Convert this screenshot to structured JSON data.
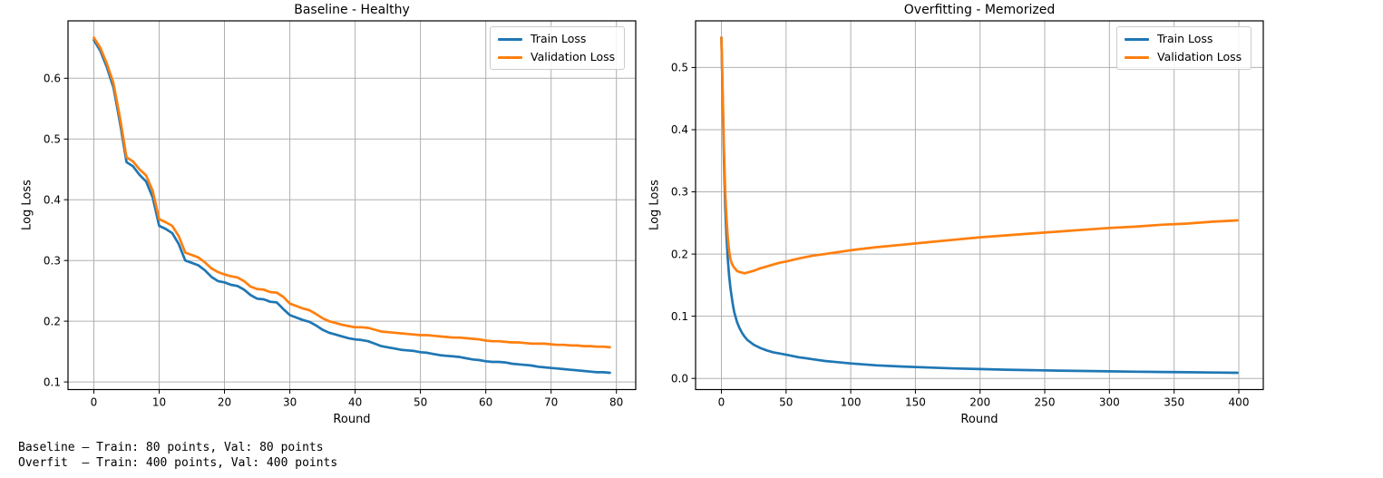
{
  "figure": {
    "background": "#ffffff",
    "footer_lines": [
      "Baseline – Train: 80 points, Val: 80 points",
      "Overfit  – Train: 400 points, Val: 400 points"
    ]
  },
  "colors": {
    "train": "#1f77b4",
    "validation": "#ff7f0e",
    "grid": "#b0b0b0",
    "spine": "#000000",
    "legend_border": "#cccccc",
    "text": "#000000"
  },
  "legend": {
    "entries": [
      {
        "label": "Train Loss",
        "color_key": "train"
      },
      {
        "label": "Validation Loss",
        "color_key": "validation"
      }
    ],
    "position": "upper right"
  },
  "chart_data": [
    {
      "id": "baseline",
      "type": "line",
      "title": "Baseline - Healthy",
      "xlabel": "Round",
      "ylabel": "Log Loss",
      "xlim": [
        -3.95,
        82.95
      ],
      "ylim": [
        0.0874,
        0.6946
      ],
      "xticks": [
        0,
        10,
        20,
        30,
        40,
        50,
        60,
        70,
        80
      ],
      "xtick_labels": [
        "0",
        "10",
        "20",
        "30",
        "40",
        "50",
        "60",
        "70",
        "80"
      ],
      "yticks": [
        0.1,
        0.2,
        0.3,
        0.4,
        0.5,
        0.6
      ],
      "ytick_labels": [
        "0.1",
        "0.2",
        "0.3",
        "0.4",
        "0.5",
        "0.6"
      ],
      "grid": true,
      "legend_position": "upper right",
      "series": [
        {
          "name": "Train Loss",
          "color": "#1f77b4",
          "x": [
            0,
            1,
            2,
            3,
            4,
            5,
            6,
            7,
            8,
            9,
            10,
            11,
            12,
            13,
            14,
            15,
            16,
            17,
            18,
            19,
            20,
            21,
            22,
            23,
            24,
            25,
            26,
            27,
            28,
            29,
            30,
            31,
            32,
            33,
            34,
            35,
            36,
            37,
            38,
            39,
            40,
            41,
            42,
            43,
            44,
            45,
            46,
            47,
            48,
            49,
            50,
            51,
            52,
            53,
            54,
            55,
            56,
            57,
            58,
            59,
            60,
            61,
            62,
            63,
            64,
            65,
            66,
            67,
            68,
            69,
            70,
            71,
            72,
            73,
            74,
            75,
            76,
            77,
            78,
            79
          ],
          "y": [
            0.663,
            0.645,
            0.618,
            0.585,
            0.527,
            0.462,
            0.455,
            0.441,
            0.43,
            0.404,
            0.357,
            0.352,
            0.345,
            0.327,
            0.3,
            0.296,
            0.292,
            0.284,
            0.273,
            0.266,
            0.264,
            0.26,
            0.258,
            0.252,
            0.243,
            0.237,
            0.236,
            0.232,
            0.231,
            0.22,
            0.21,
            0.206,
            0.202,
            0.199,
            0.193,
            0.186,
            0.181,
            0.178,
            0.175,
            0.172,
            0.17,
            0.169,
            0.167,
            0.163,
            0.159,
            0.157,
            0.155,
            0.153,
            0.152,
            0.151,
            0.149,
            0.148,
            0.146,
            0.144,
            0.143,
            0.142,
            0.141,
            0.139,
            0.137,
            0.136,
            0.134,
            0.133,
            0.133,
            0.132,
            0.13,
            0.129,
            0.128,
            0.127,
            0.125,
            0.124,
            0.123,
            0.122,
            0.121,
            0.12,
            0.119,
            0.118,
            0.117,
            0.116,
            0.116,
            0.115
          ]
        },
        {
          "name": "Validation Loss",
          "color": "#ff7f0e",
          "x": [
            0,
            1,
            2,
            3,
            4,
            5,
            6,
            7,
            8,
            9,
            10,
            11,
            12,
            13,
            14,
            15,
            16,
            17,
            18,
            19,
            20,
            21,
            22,
            23,
            24,
            25,
            26,
            27,
            28,
            29,
            30,
            31,
            32,
            33,
            34,
            35,
            36,
            37,
            38,
            39,
            40,
            41,
            42,
            43,
            44,
            45,
            46,
            47,
            48,
            49,
            50,
            51,
            52,
            53,
            54,
            55,
            56,
            57,
            58,
            59,
            60,
            61,
            62,
            63,
            64,
            65,
            66,
            67,
            68,
            69,
            70,
            71,
            72,
            73,
            74,
            75,
            76,
            77,
            78,
            79
          ],
          "y": [
            0.667,
            0.65,
            0.624,
            0.592,
            0.535,
            0.47,
            0.463,
            0.45,
            0.44,
            0.415,
            0.368,
            0.363,
            0.357,
            0.34,
            0.313,
            0.309,
            0.305,
            0.297,
            0.287,
            0.281,
            0.277,
            0.274,
            0.272,
            0.266,
            0.257,
            0.253,
            0.252,
            0.248,
            0.247,
            0.24,
            0.229,
            0.225,
            0.221,
            0.218,
            0.212,
            0.205,
            0.2,
            0.197,
            0.194,
            0.192,
            0.19,
            0.19,
            0.189,
            0.186,
            0.183,
            0.182,
            0.181,
            0.18,
            0.179,
            0.178,
            0.177,
            0.177,
            0.176,
            0.175,
            0.174,
            0.173,
            0.173,
            0.172,
            0.171,
            0.17,
            0.168,
            0.167,
            0.167,
            0.166,
            0.165,
            0.165,
            0.164,
            0.163,
            0.163,
            0.163,
            0.162,
            0.161,
            0.161,
            0.16,
            0.16,
            0.159,
            0.159,
            0.158,
            0.158,
            0.157
          ]
        }
      ],
      "stats": {
        "train_points": 80,
        "val_points": 80
      }
    },
    {
      "id": "overfit",
      "type": "line",
      "title": "Overfitting - Memorized",
      "xlabel": "Round",
      "ylabel": "Log Loss",
      "xlim": [
        -19.95,
        418.95
      ],
      "ylim": [
        -0.018,
        0.575
      ],
      "xticks": [
        0,
        50,
        100,
        150,
        200,
        250,
        300,
        350,
        400
      ],
      "xtick_labels": [
        "0",
        "50",
        "100",
        "150",
        "200",
        "250",
        "300",
        "350",
        "400"
      ],
      "yticks": [
        0.0,
        0.1,
        0.2,
        0.3,
        0.4,
        0.5
      ],
      "ytick_labels": [
        "0.0",
        "0.1",
        "0.2",
        "0.3",
        "0.4",
        "0.5"
      ],
      "grid": true,
      "legend_position": "upper right",
      "series": [
        {
          "name": "Train Loss",
          "color": "#1f77b4",
          "x": [
            0,
            1,
            2,
            3,
            4,
            5,
            6,
            7,
            8,
            9,
            10,
            12,
            14,
            16,
            18,
            20,
            25,
            30,
            35,
            40,
            45,
            50,
            60,
            70,
            80,
            90,
            100,
            120,
            140,
            160,
            180,
            200,
            220,
            240,
            260,
            280,
            300,
            320,
            340,
            360,
            380,
            399
          ],
          "y": [
            0.548,
            0.45,
            0.35,
            0.275,
            0.225,
            0.19,
            0.165,
            0.146,
            0.13,
            0.117,
            0.106,
            0.091,
            0.081,
            0.073,
            0.067,
            0.062,
            0.054,
            0.049,
            0.045,
            0.042,
            0.04,
            0.038,
            0.034,
            0.031,
            0.028,
            0.026,
            0.024,
            0.021,
            0.019,
            0.0175,
            0.016,
            0.015,
            0.014,
            0.0132,
            0.0125,
            0.0119,
            0.0113,
            0.0108,
            0.0103,
            0.0098,
            0.0094,
            0.009
          ]
        },
        {
          "name": "Validation Loss",
          "color": "#ff7f0e",
          "x": [
            0,
            1,
            2,
            3,
            4,
            5,
            6,
            7,
            8,
            9,
            10,
            12,
            14,
            16,
            18,
            20,
            25,
            30,
            35,
            40,
            45,
            50,
            60,
            70,
            80,
            90,
            100,
            120,
            140,
            160,
            180,
            200,
            220,
            240,
            260,
            280,
            300,
            320,
            340,
            360,
            380,
            399
          ],
          "y": [
            0.548,
            0.46,
            0.37,
            0.3,
            0.255,
            0.225,
            0.205,
            0.192,
            0.185,
            0.181,
            0.178,
            0.173,
            0.171,
            0.17,
            0.169,
            0.17,
            0.173,
            0.177,
            0.18,
            0.183,
            0.186,
            0.188,
            0.193,
            0.197,
            0.2,
            0.203,
            0.206,
            0.211,
            0.215,
            0.219,
            0.223,
            0.227,
            0.23,
            0.233,
            0.236,
            0.239,
            0.242,
            0.244,
            0.247,
            0.249,
            0.252,
            0.254
          ]
        }
      ],
      "stats": {
        "train_points": 400,
        "val_points": 400
      }
    }
  ]
}
